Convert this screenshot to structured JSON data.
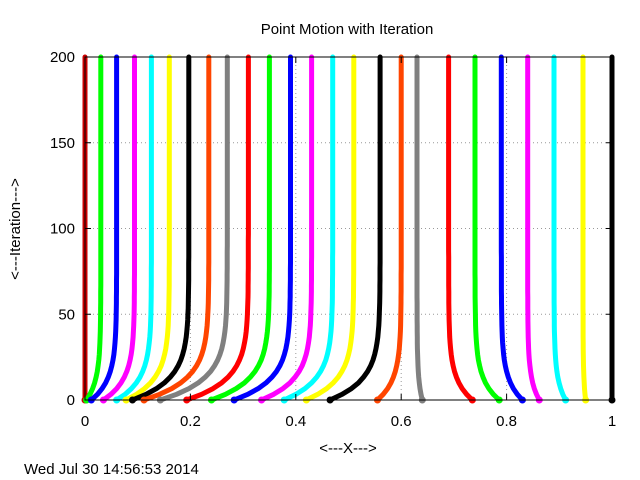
{
  "chart_data": {
    "type": "line",
    "title": "Point Motion with Iteration",
    "xlabel": "<---X--->",
    "ylabel": "<---Iteration--->",
    "xlim": [
      0,
      1
    ],
    "ylim": [
      0,
      200
    ],
    "x_ticks": [
      "0",
      "0.2",
      "0.4",
      "0.6",
      "0.8",
      "1"
    ],
    "y_ticks": [
      "0",
      "50",
      "100",
      "150",
      "200"
    ],
    "grid": true,
    "legend": "none",
    "palette": [
      "#ff0000",
      "#00ff00",
      "#0000ff",
      "#ff00ff",
      "#00ffff",
      "#ffff00",
      "#000000",
      "#ff4500",
      "#808080"
    ],
    "series": [
      {
        "color": "#cc0000",
        "x": [
          0.0,
          0.0
        ]
      },
      {
        "color": "#00ff00",
        "x": [
          0.003,
          0.03
        ]
      },
      {
        "color": "#0000ff",
        "x": [
          0.012,
          0.06
        ]
      },
      {
        "color": "#ff00ff",
        "x": [
          0.035,
          0.094
        ]
      },
      {
        "color": "#00ffff",
        "x": [
          0.06,
          0.126
        ]
      },
      {
        "color": "#ffff00",
        "x": [
          0.078,
          0.16
        ]
      },
      {
        "color": "#000000",
        "x": [
          0.09,
          0.197
        ]
      },
      {
        "color": "#ff4500",
        "x": [
          0.112,
          0.235
        ]
      },
      {
        "color": "#808080",
        "x": [
          0.143,
          0.27
        ]
      },
      {
        "color": "#ff0000",
        "x": [
          0.193,
          0.31
        ]
      },
      {
        "color": "#00ff00",
        "x": [
          0.24,
          0.35
        ]
      },
      {
        "color": "#0000ff",
        "x": [
          0.283,
          0.39
        ]
      },
      {
        "color": "#ff00ff",
        "x": [
          0.335,
          0.43
        ]
      },
      {
        "color": "#00ffff",
        "x": [
          0.378,
          0.47
        ]
      },
      {
        "color": "#ffff00",
        "x": [
          0.42,
          0.51
        ]
      },
      {
        "color": "#000000",
        "x": [
          0.465,
          0.56
        ]
      },
      {
        "color": "#ff4500",
        "x": [
          0.555,
          0.6
        ]
      },
      {
        "color": "#808080",
        "x": [
          0.64,
          0.63
        ]
      },
      {
        "color": "#ff0000",
        "x": [
          0.735,
          0.69
        ]
      },
      {
        "color": "#00ff00",
        "x": [
          0.786,
          0.74
        ]
      },
      {
        "color": "#0000ff",
        "x": [
          0.83,
          0.79
        ]
      },
      {
        "color": "#ff00ff",
        "x": [
          0.862,
          0.84
        ]
      },
      {
        "color": "#00ffff",
        "x": [
          0.912,
          0.89
        ]
      },
      {
        "color": "#ffff00",
        "x": [
          0.95,
          0.945
        ]
      },
      {
        "color": "#000000",
        "x": [
          1.0,
          1.0
        ]
      }
    ]
  },
  "timestamp": "Wed Jul 30 14:56:53 2014"
}
